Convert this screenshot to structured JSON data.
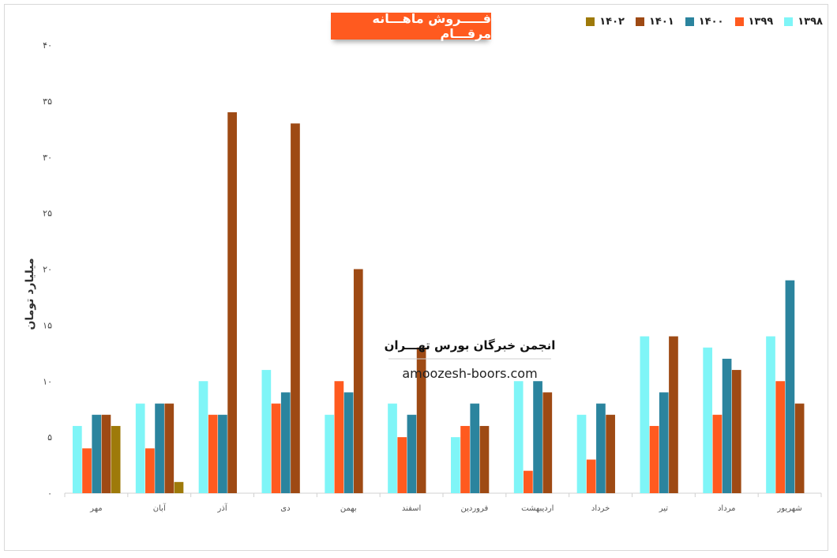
{
  "title": "فـــــروش ماهـــانه مرقـــام",
  "watermark": {
    "title": "انجمن خبرگان بورس تهـــران",
    "url": "amoozesh-boors.com"
  },
  "chart_data": {
    "type": "bar",
    "title": "فـــــروش ماهـــانه مرقـــام",
    "ylabel": "میلیارد تومان",
    "xlabel": "",
    "ylim": [
      0,
      40
    ],
    "yticks": [
      "۰",
      "۵",
      "۱۰",
      "۱۵",
      "۲۰",
      "۲۵",
      "۳۰",
      "۳۵",
      "۴۰"
    ],
    "categories": [
      "مهر",
      "آبان",
      "آذر",
      "دی",
      "بهمن",
      "اسفند",
      "فروردین",
      "اردیبهشت",
      "خرداد",
      "تیر",
      "مرداد",
      "شهریور"
    ],
    "series": [
      {
        "name": "۱۳۹۸",
        "color": "#7ff5f7",
        "values": [
          6,
          8,
          10,
          11,
          7,
          8,
          5,
          10,
          7,
          14,
          13,
          14
        ]
      },
      {
        "name": "۱۳۹۹",
        "color": "#ff5a1f",
        "values": [
          4,
          4,
          7,
          8,
          10,
          5,
          6,
          2,
          3,
          6,
          7,
          10
        ]
      },
      {
        "name": "۱۴۰۰",
        "color": "#2b849e",
        "values": [
          7,
          8,
          7,
          9,
          9,
          7,
          8,
          10,
          8,
          9,
          12,
          19
        ]
      },
      {
        "name": "۱۴۰۱",
        "color": "#9e4a14",
        "values": [
          7,
          8,
          34,
          33,
          20,
          13,
          6,
          9,
          7,
          14,
          11,
          8
        ]
      },
      {
        "name": "۱۴۰۲",
        "color": "#9e7a0a",
        "values": [
          6,
          1,
          null,
          null,
          null,
          null,
          null,
          null,
          null,
          null,
          null,
          null
        ]
      }
    ],
    "legend_position": "top-right",
    "grid": false
  }
}
